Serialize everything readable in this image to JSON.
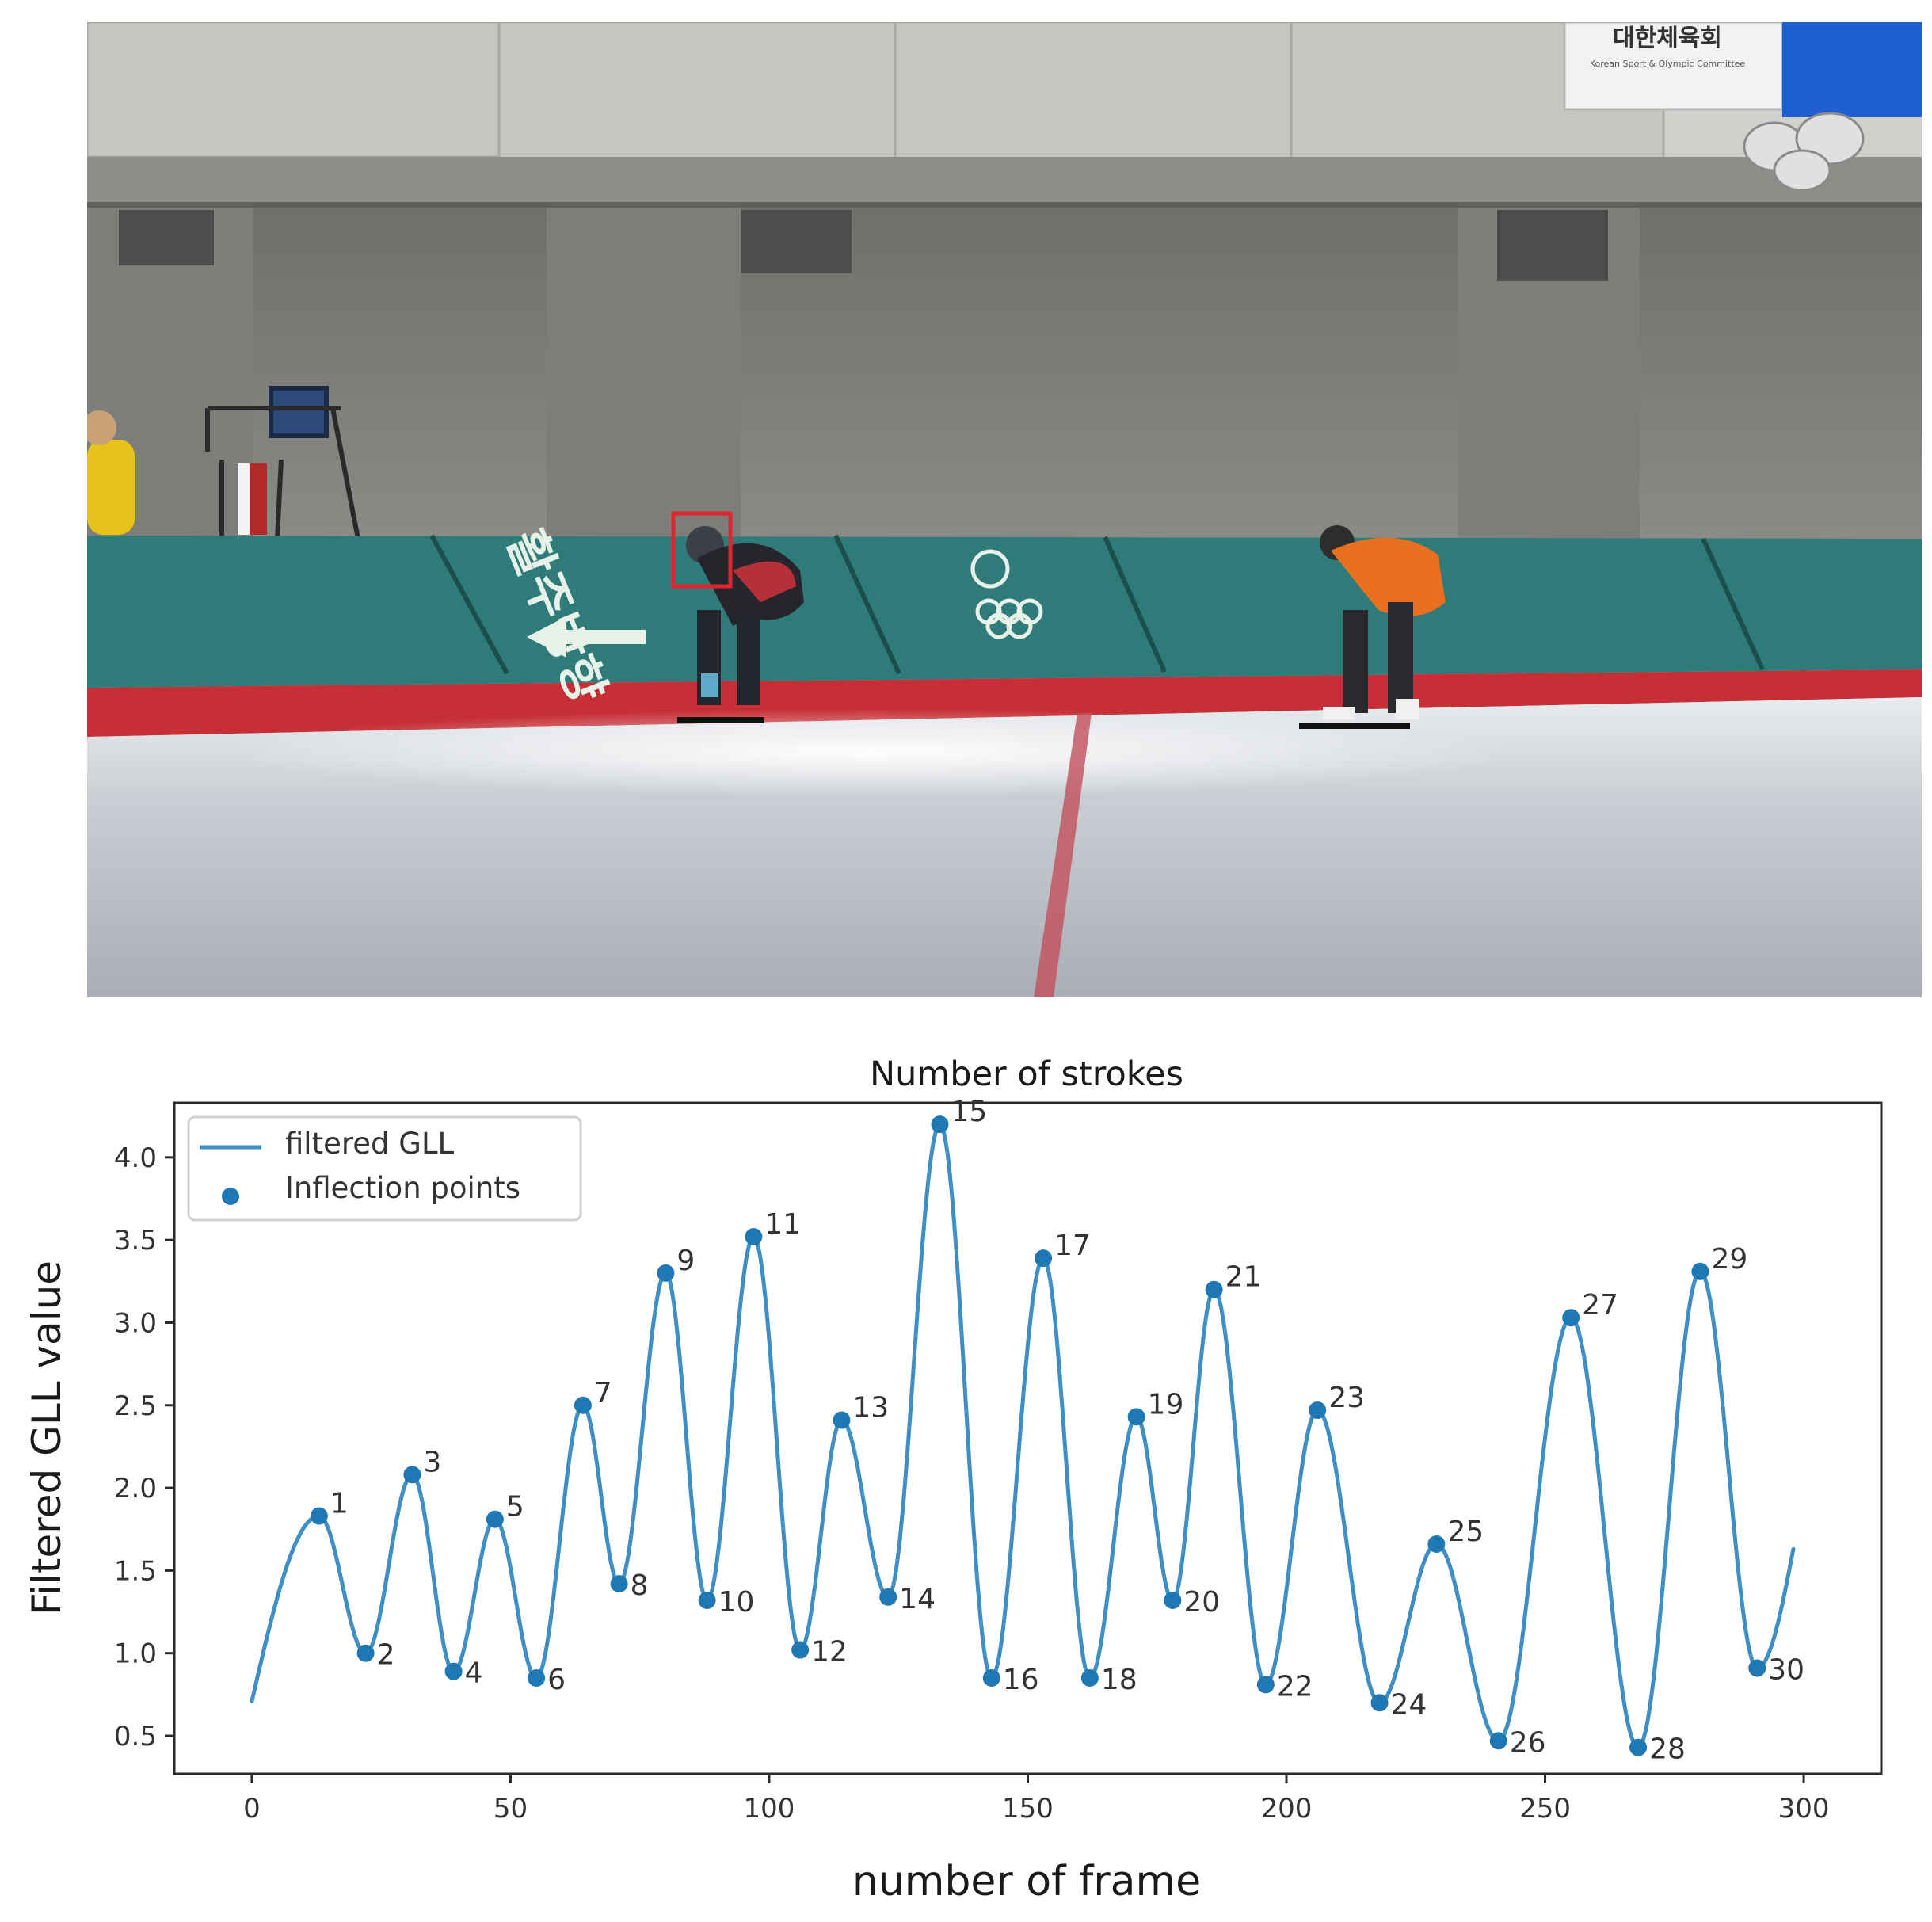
{
  "photo": {
    "banner_text": "대한체육회",
    "banner_subtext": "Korean Sport & Olympic Committee",
    "direction_text": "활주방향"
  },
  "chart_data": {
    "type": "line",
    "title": "Number of strokes",
    "xlabel": "number of frame",
    "ylabel": "Filtered GLL value",
    "xlim": [
      -15,
      315
    ],
    "ylim": [
      0.27,
      4.33
    ],
    "xticks": [
      0,
      50,
      100,
      150,
      200,
      250,
      300
    ],
    "yticks": [
      0.5,
      1.0,
      1.5,
      2.0,
      2.5,
      3.0,
      3.5,
      4.0
    ],
    "xtick_labels": [
      "0",
      "50",
      "100",
      "150",
      "200",
      "250",
      "300"
    ],
    "ytick_labels": [
      "0.5",
      "1.0",
      "1.5",
      "2.0",
      "2.5",
      "3.0",
      "3.5",
      "4.0"
    ],
    "grid": false,
    "legend_position": "upper-left",
    "legend": [
      "filtered GLL",
      "Inflection points"
    ],
    "line_color": "#3f8fc4",
    "point_color": "#1f77b4",
    "series": [
      {
        "name": "filtered GLL",
        "curve_start": [
          0,
          0.71
        ],
        "curve_end": [
          298,
          1.63
        ]
      },
      {
        "name": "Inflection points",
        "labels": [
          "1",
          "2",
          "3",
          "4",
          "5",
          "6",
          "7",
          "8",
          "9",
          "10",
          "11",
          "12",
          "13",
          "14",
          "15",
          "16",
          "17",
          "18",
          "19",
          "20",
          "21",
          "22",
          "23",
          "24",
          "25",
          "26",
          "27",
          "28",
          "29",
          "30"
        ],
        "x": [
          13,
          22,
          31,
          39,
          47,
          55,
          64,
          71,
          80,
          88,
          97,
          106,
          114,
          123,
          133,
          143,
          153,
          162,
          171,
          178,
          186,
          196,
          206,
          218,
          229,
          241,
          255,
          268,
          280,
          291
        ],
        "y": [
          1.83,
          1.0,
          2.08,
          0.89,
          1.81,
          0.85,
          2.5,
          1.42,
          3.3,
          1.32,
          3.52,
          1.02,
          2.41,
          1.34,
          4.2,
          0.85,
          3.39,
          0.85,
          2.43,
          1.32,
          3.2,
          0.81,
          2.47,
          0.7,
          1.66,
          0.47,
          3.03,
          0.43,
          3.31,
          0.91
        ]
      }
    ]
  }
}
